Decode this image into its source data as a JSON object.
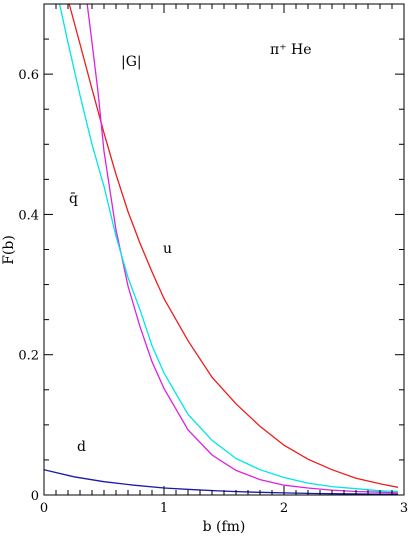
{
  "chart_data": {
    "type": "line",
    "title": "",
    "xlabel": "b (fm)",
    "ylabel": "F(b)",
    "xlim": [
      0,
      3
    ],
    "ylim": [
      0,
      0.7
    ],
    "x_ticks": [
      0,
      1,
      2,
      3
    ],
    "x_tick_labels": [
      "0",
      "1",
      "2",
      "3"
    ],
    "y_ticks": [
      0,
      0.2,
      0.4,
      0.6
    ],
    "y_tick_labels": [
      "0",
      "0.2",
      "0.4",
      "0.6"
    ],
    "grid": false,
    "annotations": {
      "process": "π⁺ He",
      "G_label": "|G|",
      "qbar_label": "q̄",
      "u_label": "u",
      "d_label": "d"
    },
    "series": [
      {
        "name": "u",
        "color": "#ee1c1c",
        "x": [
          0.21,
          0.3,
          0.4,
          0.5,
          0.6,
          0.7,
          0.8,
          0.9,
          1.0,
          1.2,
          1.4,
          1.6,
          1.8,
          2.0,
          2.2,
          2.4,
          2.6,
          2.8,
          2.95
        ],
        "y": [
          0.7,
          0.643,
          0.579,
          0.516,
          0.457,
          0.404,
          0.359,
          0.318,
          0.28,
          0.22,
          0.168,
          0.13,
          0.098,
          0.071,
          0.051,
          0.036,
          0.024,
          0.016,
          0.011
        ]
      },
      {
        "name": "G",
        "color": "#dd22dd",
        "x": [
          0.36,
          0.4,
          0.45,
          0.5,
          0.6,
          0.7,
          0.8,
          0.9,
          1.0,
          1.2,
          1.4,
          1.6,
          1.8,
          2.0,
          2.2,
          2.4,
          2.6,
          2.8,
          2.95
        ],
        "y": [
          0.7,
          0.645,
          0.575,
          0.49,
          0.378,
          0.298,
          0.24,
          0.19,
          0.152,
          0.093,
          0.057,
          0.035,
          0.022,
          0.014,
          0.01,
          0.007,
          0.005,
          0.004,
          0.003
        ]
      },
      {
        "name": "qbar",
        "color": "#00e6e6",
        "x": [
          0.13,
          0.2,
          0.3,
          0.4,
          0.5,
          0.6,
          0.7,
          0.8,
          0.9,
          1.0,
          1.2,
          1.4,
          1.6,
          1.8,
          2.0,
          2.2,
          2.4,
          2.6,
          2.8,
          2.95
        ],
        "y": [
          0.7,
          0.645,
          0.57,
          0.5,
          0.44,
          0.369,
          0.31,
          0.264,
          0.213,
          0.174,
          0.115,
          0.078,
          0.052,
          0.036,
          0.025,
          0.017,
          0.012,
          0.009,
          0.006,
          0.005
        ]
      },
      {
        "name": "d",
        "color": "#1a1aa8",
        "x": [
          0.0,
          0.25,
          0.5,
          0.75,
          1.0,
          1.25,
          1.5,
          1.75,
          2.0,
          2.25,
          2.5,
          2.75,
          2.95
        ],
        "y": [
          0.036,
          0.026,
          0.019,
          0.014,
          0.01,
          0.0075,
          0.0055,
          0.004,
          0.003,
          0.0022,
          0.0017,
          0.0013,
          0.001
        ]
      }
    ]
  }
}
